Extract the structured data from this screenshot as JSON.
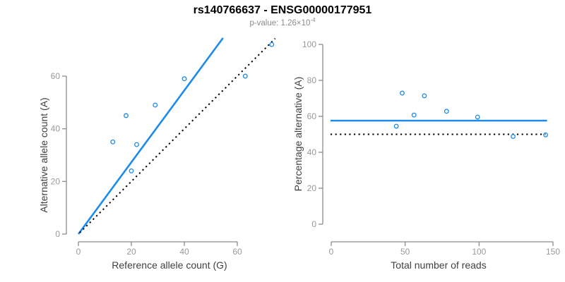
{
  "header": {
    "title": "rs140766637 - ENSG00000177951",
    "subtitle_prefix": "p-value: 1.26×10",
    "subtitle_exponent": "-4"
  },
  "colors": {
    "accent_blue": "#1E8AE9",
    "identity_black": "#000000",
    "axis_line": "#8c8c8c",
    "tick_label": "#999999",
    "axis_title": "#404040",
    "title_text": "#000000",
    "subtitle_text": "#8c8c8c",
    "background": "#ffffff"
  },
  "chart_data": [
    {
      "type": "scatter",
      "name": "allele-counts-scatter",
      "xlabel": "Reference allele count (G)",
      "ylabel": "Alternative allele count (A)",
      "x_ticks": [
        0,
        20,
        40,
        60
      ],
      "y_ticks": [
        0,
        20,
        40,
        60
      ],
      "xlim": [
        0,
        75
      ],
      "ylim": [
        0,
        74
      ],
      "grid": false,
      "legend": "none",
      "points": [
        {
          "x": 13,
          "y": 35
        },
        {
          "x": 18,
          "y": 45
        },
        {
          "x": 20,
          "y": 24
        },
        {
          "x": 22,
          "y": 34
        },
        {
          "x": 29,
          "y": 49
        },
        {
          "x": 40,
          "y": 59
        },
        {
          "x": 63,
          "y": 60
        },
        {
          "x": 73,
          "y": 72
        }
      ],
      "lines": [
        {
          "name": "fit-line",
          "style": "solid",
          "color": "#1E8AE9",
          "x1": 0,
          "y1": 0,
          "x2": 54.6,
          "y2": 74.5
        },
        {
          "name": "identity-line",
          "style": "dotted",
          "color": "#000000",
          "x1": 0.5,
          "y1": 0.5,
          "x2": 74.3,
          "y2": 74.3
        }
      ]
    },
    {
      "type": "scatter",
      "name": "percentage-alternative-scatter",
      "xlabel": "Total number of reads",
      "ylabel": "Percentage alternative (A)",
      "x_ticks": [
        0,
        50,
        100,
        150
      ],
      "y_ticks": [
        0,
        20,
        40,
        60,
        80,
        100
      ],
      "xlim": [
        0,
        150
      ],
      "ylim": [
        0,
        100
      ],
      "grid": false,
      "legend": "none",
      "points": [
        {
          "x": 44,
          "y": 54.5
        },
        {
          "x": 48,
          "y": 72.9
        },
        {
          "x": 56,
          "y": 60.7
        },
        {
          "x": 63,
          "y": 71.4
        },
        {
          "x": 78,
          "y": 62.8
        },
        {
          "x": 99,
          "y": 59.6
        },
        {
          "x": 123,
          "y": 48.8
        },
        {
          "x": 145,
          "y": 49.7
        }
      ],
      "lines": [
        {
          "name": "mean-percentage-line",
          "style": "solid",
          "color": "#1E8AE9",
          "x1": -0.5,
          "y1": 57.6,
          "x2": 146,
          "y2": 57.6
        },
        {
          "name": "null-50-percent-line",
          "style": "dotted",
          "color": "#000000",
          "x1": -0.5,
          "y1": 50,
          "x2": 145,
          "y2": 50
        }
      ]
    }
  ]
}
